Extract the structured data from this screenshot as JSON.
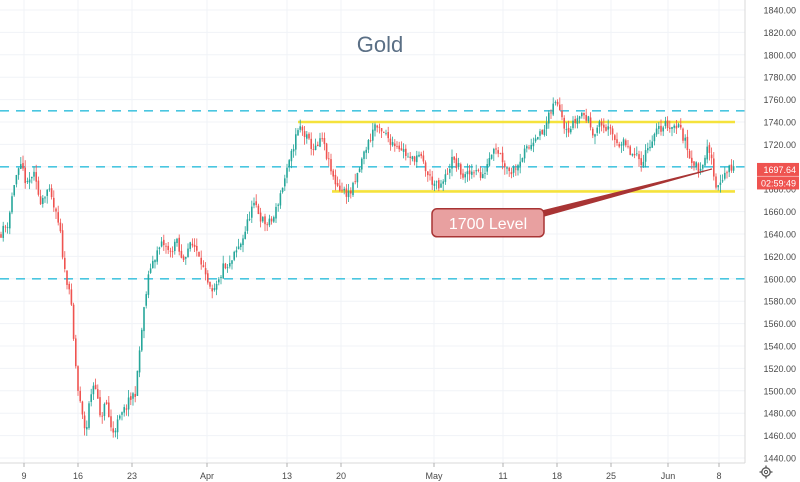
{
  "chart_data": {
    "type": "candlestick",
    "title": "Gold",
    "ylim": [
      1430,
      1850
    ],
    "y_ticks": [
      1440,
      1460,
      1480,
      1500,
      1520,
      1540,
      1560,
      1580,
      1600,
      1620,
      1640,
      1660,
      1680,
      1700,
      1720,
      1740,
      1760,
      1780,
      1800,
      1820,
      1840
    ],
    "x_ticks": [
      {
        "label": "9",
        "x": 24
      },
      {
        "label": "16",
        "x": 78
      },
      {
        "label": "23",
        "x": 132
      },
      {
        "label": "Apr",
        "x": 207
      },
      {
        "label": "13",
        "x": 287
      },
      {
        "label": "20",
        "x": 341
      },
      {
        "label": "May",
        "x": 434
      },
      {
        "label": "11",
        "x": 503
      },
      {
        "label": "18",
        "x": 557
      },
      {
        "label": "25",
        "x": 611
      },
      {
        "label": "Jun",
        "x": 668
      },
      {
        "label": "8",
        "x": 719
      }
    ],
    "x_range": [
      0,
      745
    ],
    "current_price": "1697.64",
    "countdown": "02:59:49",
    "reference_levels": [
      1600,
      1700,
      1750
    ],
    "range_lines": [
      {
        "value": 1740,
        "x_start": 298,
        "x_end": 735
      },
      {
        "value": 1678,
        "x_start": 332,
        "x_end": 735
      }
    ],
    "annotation": {
      "text": "1700 Level",
      "x": 488,
      "y": 1650,
      "pointer_to_x": 712,
      "pointer_to_y": 1698
    },
    "colors": {
      "up": "#26a69a",
      "down": "#ef5350",
      "reference": "#4ac6e0",
      "range": "#f5e23c",
      "annotation_fill": "#e8a0a0",
      "annotation_border": "#a83434",
      "annotation_text": "#ffffff",
      "title": "#5a6f85",
      "axis_text": "#4a4a4a",
      "price_tag": "#ef5350"
    },
    "grid": true,
    "anchors": [
      [
        0,
        1640
      ],
      [
        8,
        1650
      ],
      [
        15,
        1690
      ],
      [
        22,
        1700
      ],
      [
        27,
        1682
      ],
      [
        33,
        1695
      ],
      [
        40,
        1670
      ],
      [
        48,
        1680
      ],
      [
        55,
        1660
      ],
      [
        60,
        1642
      ],
      [
        65,
        1605
      ],
      [
        70,
        1590
      ],
      [
        74,
        1540
      ],
      [
        78,
        1500
      ],
      [
        82,
        1478
      ],
      [
        86,
        1462
      ],
      [
        90,
        1495
      ],
      [
        95,
        1510
      ],
      [
        100,
        1475
      ],
      [
        106,
        1490
      ],
      [
        112,
        1462
      ],
      [
        118,
        1472
      ],
      [
        124,
        1482
      ],
      [
        130,
        1492
      ],
      [
        136,
        1500
      ],
      [
        140,
        1540
      ],
      [
        145,
        1580
      ],
      [
        150,
        1610
      ],
      [
        156,
        1622
      ],
      [
        163,
        1632
      ],
      [
        170,
        1622
      ],
      [
        176,
        1635
      ],
      [
        182,
        1615
      ],
      [
        188,
        1628
      ],
      [
        194,
        1630
      ],
      [
        200,
        1622
      ],
      [
        206,
        1598
      ],
      [
        212,
        1585
      ],
      [
        218,
        1595
      ],
      [
        223,
        1610
      ],
      [
        228,
        1608
      ],
      [
        234,
        1620
      ],
      [
        240,
        1630
      ],
      [
        246,
        1645
      ],
      [
        251,
        1662
      ],
      [
        256,
        1665
      ],
      [
        262,
        1652
      ],
      [
        268,
        1648
      ],
      [
        274,
        1655
      ],
      [
        280,
        1675
      ],
      [
        285,
        1690
      ],
      [
        290,
        1705
      ],
      [
        295,
        1725
      ],
      [
        300,
        1735
      ],
      [
        305,
        1728
      ],
      [
        310,
        1720
      ],
      [
        316,
        1715
      ],
      [
        322,
        1725
      ],
      [
        328,
        1705
      ],
      [
        333,
        1690
      ],
      [
        338,
        1683
      ],
      [
        344,
        1678
      ],
      [
        350,
        1676
      ],
      [
        355,
        1685
      ],
      [
        360,
        1700
      ],
      [
        365,
        1715
      ],
      [
        370,
        1725
      ],
      [
        375,
        1738
      ],
      [
        380,
        1730
      ],
      [
        386,
        1728
      ],
      [
        392,
        1722
      ],
      [
        398,
        1720
      ],
      [
        404,
        1714
      ],
      [
        410,
        1705
      ],
      [
        416,
        1710
      ],
      [
        422,
        1706
      ],
      [
        428,
        1692
      ],
      [
        434,
        1685
      ],
      [
        440,
        1680
      ],
      [
        446,
        1692
      ],
      [
        452,
        1706
      ],
      [
        458,
        1700
      ],
      [
        464,
        1690
      ],
      [
        470,
        1694
      ],
      [
        476,
        1700
      ],
      [
        482,
        1688
      ],
      [
        488,
        1706
      ],
      [
        494,
        1720
      ],
      [
        500,
        1712
      ],
      [
        506,
        1700
      ],
      [
        512,
        1696
      ],
      [
        518,
        1704
      ],
      [
        524,
        1712
      ],
      [
        530,
        1718
      ],
      [
        536,
        1730
      ],
      [
        542,
        1728
      ],
      [
        548,
        1742
      ],
      [
        554,
        1756
      ],
      [
        559,
        1758
      ],
      [
        564,
        1738
      ],
      [
        570,
        1734
      ],
      [
        576,
        1742
      ],
      [
        582,
        1748
      ],
      [
        588,
        1742
      ],
      [
        594,
        1730
      ],
      [
        600,
        1738
      ],
      [
        606,
        1735
      ],
      [
        612,
        1728
      ],
      [
        618,
        1722
      ],
      [
        624,
        1720
      ],
      [
        630,
        1712
      ],
      [
        636,
        1708
      ],
      [
        642,
        1705
      ],
      [
        648,
        1718
      ],
      [
        654,
        1728
      ],
      [
        660,
        1734
      ],
      [
        666,
        1738
      ],
      [
        672,
        1736
      ],
      [
        678,
        1738
      ],
      [
        684,
        1725
      ],
      [
        690,
        1710
      ],
      [
        696,
        1700
      ],
      [
        700,
        1696
      ],
      [
        704,
        1710
      ],
      [
        708,
        1715
      ],
      [
        712,
        1704
      ],
      [
        716,
        1682
      ],
      [
        720,
        1688
      ],
      [
        726,
        1695
      ],
      [
        732,
        1700
      ],
      [
        735,
        1698
      ]
    ]
  }
}
